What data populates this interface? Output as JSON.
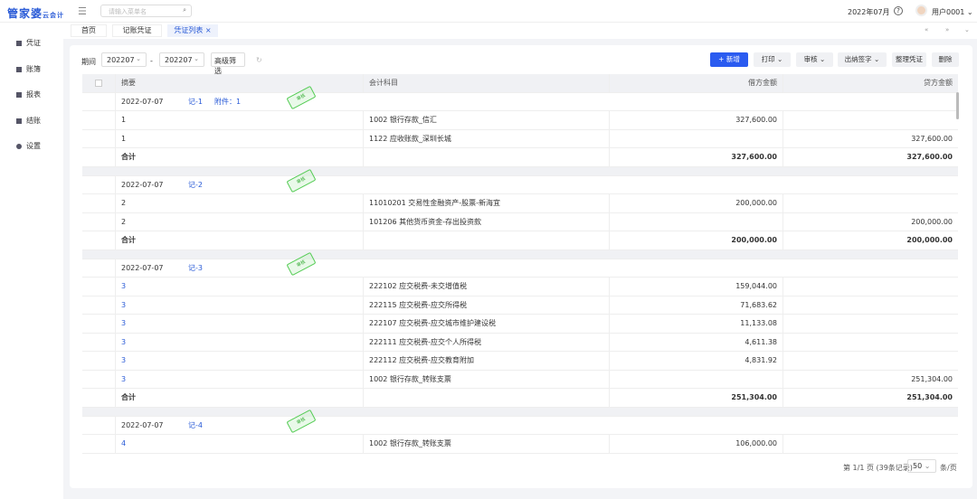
{
  "header": {
    "logo": "管家婆",
    "logo_sub": "云会计",
    "search_placeholder": "请输入菜单名",
    "period": "2022年07月",
    "help": "?",
    "user": "用户0001"
  },
  "tabs": [
    {
      "label": "首页"
    },
    {
      "label": "记账凭证"
    },
    {
      "label": "凭证列表",
      "close": "×"
    }
  ],
  "sidebar": [
    {
      "label": "凭证"
    },
    {
      "label": "账簿"
    },
    {
      "label": "报表"
    },
    {
      "label": "结账"
    },
    {
      "label": "设置"
    }
  ],
  "toolbar": {
    "period_label": "期间",
    "from": "202207",
    "sep": "-",
    "to": "202207",
    "filter": "高级筛选",
    "new": "+ 新增",
    "print": "打印",
    "audit": "审核",
    "cashier": "出纳签字",
    "organize": "整理凭证",
    "delete": "删除"
  },
  "table": {
    "headers": [
      "摘要",
      "会计科目",
      "借方金额",
      "贷方金额"
    ],
    "total_label": "合计",
    "stamp": "审核",
    "groups": [
      {
        "date": "2022-07-07",
        "no": "记-1",
        "attach": "附件：1",
        "rows": [
          [
            "1",
            "1002 银行存款_信汇",
            "327,600.00",
            ""
          ],
          [
            "1",
            "1122 应收账款_深圳长城",
            "",
            "327,600.00"
          ]
        ],
        "debit": "327,600.00",
        "credit": "327,600.00"
      },
      {
        "date": "2022-07-07",
        "no": "记-2",
        "rows": [
          [
            "2",
            "11010201 交易性金融资产-股票-新海宜",
            "200,000.00",
            ""
          ],
          [
            "2",
            "101206 其他货币资金-存出投资款",
            "",
            "200,000.00"
          ]
        ],
        "debit": "200,000.00",
        "credit": "200,000.00"
      },
      {
        "date": "2022-07-07",
        "no": "记-3",
        "rows": [
          [
            "3",
            "222102 应交税费-未交增值税",
            "159,044.00",
            ""
          ],
          [
            "3",
            "222115 应交税费-应交所得税",
            "71,683.62",
            ""
          ],
          [
            "3",
            "222107 应交税费-应交城市维护建设税",
            "11,133.08",
            ""
          ],
          [
            "3",
            "222111 应交税费-应交个人所得税",
            "4,611.38",
            ""
          ],
          [
            "3",
            "222112 应交税费-应交教育附加",
            "4,831.92",
            ""
          ],
          [
            "3",
            "1002 银行存款_转账支票",
            "",
            "251,304.00"
          ]
        ],
        "debit": "251,304.00",
        "credit": "251,304.00"
      },
      {
        "date": "2022-07-07",
        "no": "记-4",
        "rows": [
          [
            "4",
            "1002 银行存款_转账支票",
            "106,000.00",
            ""
          ]
        ]
      }
    ]
  },
  "pager": {
    "info": "第 1/1 页 (39条记录)",
    "size": "50",
    "unit": "条/页"
  }
}
